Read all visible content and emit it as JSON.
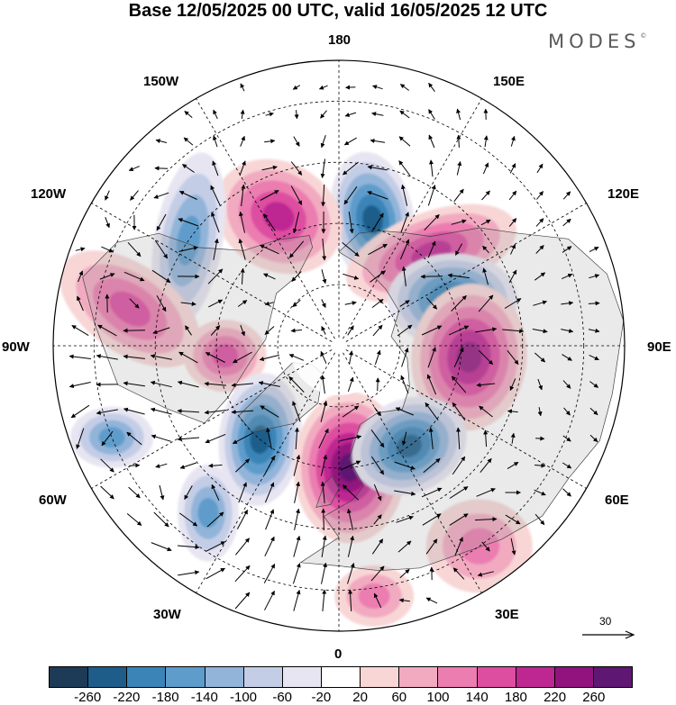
{
  "title": "Base 12/05/2025 00 UTC, valid 16/05/2025 12 UTC",
  "brand": "MODES",
  "brand_mark": "©",
  "longitudes": {
    "n180": "180",
    "w150": "150W",
    "e150": "150E",
    "w120": "120W",
    "e120": "120E",
    "w90": "90W",
    "e90": "90E",
    "w60": "60W",
    "e60": "60E",
    "w30": "30W",
    "e30": "30E",
    "n0": "0"
  },
  "reference_vector": "30",
  "colorbar": {
    "colors": [
      "#1d3a57",
      "#1e5d8a",
      "#3a84b8",
      "#5e9ccb",
      "#92b4d9",
      "#c4cde6",
      "#e6e5f1",
      "#ffffff",
      "#f8d6d6",
      "#f1aac0",
      "#eb7db0",
      "#dd4ea0",
      "#be2791",
      "#92137e",
      "#5e1772"
    ],
    "ticks": [
      "-260",
      "-220",
      "-180",
      "-140",
      "-100",
      "-60",
      "-20",
      "20",
      "60",
      "100",
      "140",
      "180",
      "220",
      "260"
    ]
  },
  "anomaly_centers": [
    {
      "sign": "negative",
      "value": -220,
      "lon": 165,
      "lat": 58
    },
    {
      "sign": "positive",
      "value": 160,
      "lon": -155,
      "lat": 55
    },
    {
      "sign": "negative",
      "value": -150,
      "lon": -125,
      "lat": 45
    },
    {
      "sign": "positive",
      "value": 180,
      "lon": 135,
      "lat": 58
    },
    {
      "sign": "negative",
      "value": -200,
      "lon": 112,
      "lat": 60
    },
    {
      "sign": "positive",
      "value": 200,
      "lon": 85,
      "lat": 58
    },
    {
      "sign": "positive",
      "value": 120,
      "lon": -100,
      "lat": 38
    },
    {
      "sign": "positive",
      "value": 120,
      "lon": -85,
      "lat": 62
    },
    {
      "sign": "negative",
      "value": -120,
      "lon": -68,
      "lat": 30
    },
    {
      "sign": "negative",
      "value": -220,
      "lon": -40,
      "lat": 60
    },
    {
      "sign": "negative",
      "value": -140,
      "lon": -38,
      "lat": 38
    },
    {
      "sign": "positive",
      "value": 240,
      "lon": 5,
      "lat": 60
    },
    {
      "sign": "negative",
      "value": -200,
      "lon": 35,
      "lat": 60
    },
    {
      "sign": "positive",
      "value": 100,
      "lon": 35,
      "lat": 30
    },
    {
      "sign": "positive",
      "value": 80,
      "lon": 8,
      "lat": 28
    }
  ]
}
